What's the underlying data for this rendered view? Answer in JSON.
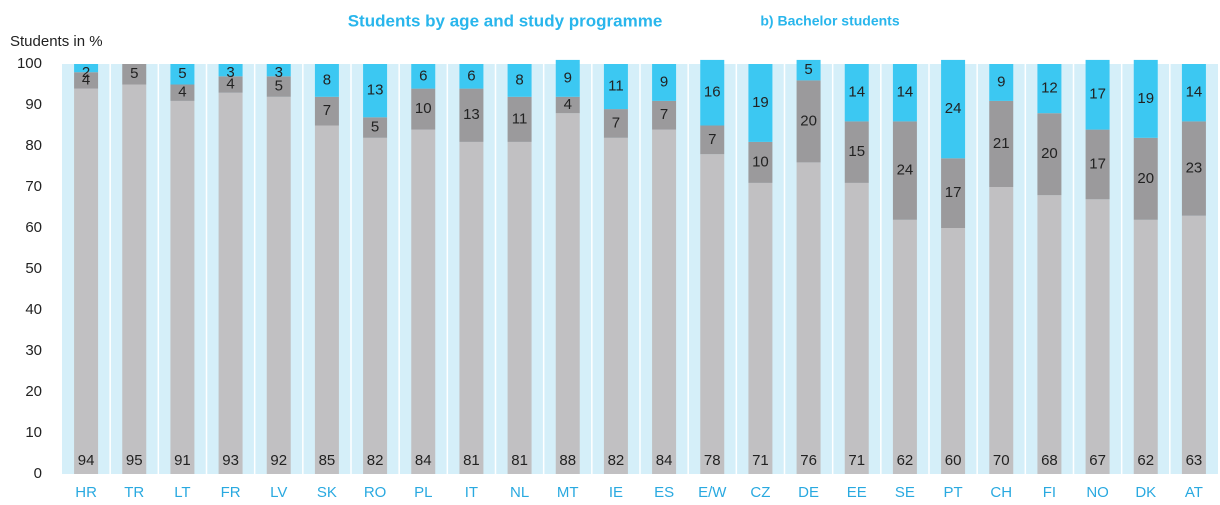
{
  "chart_data": {
    "type": "stacked_bar",
    "title": "Students by age and study programme",
    "subtitle": "b) Bachelor students",
    "y_label": "Students in %",
    "categories": [
      "HR",
      "TR",
      "LT",
      "FR",
      "LV",
      "SK",
      "RO",
      "PL",
      "IT",
      "NL",
      "MT",
      "IE",
      "ES",
      "E/W",
      "CZ",
      "DE",
      "EE",
      "SE",
      "PT",
      "CH",
      "FI",
      "NO",
      "DK",
      "AT"
    ],
    "series": [
      {
        "color": "#c1c0c2",
        "values": [
          94,
          95,
          91,
          93,
          92,
          85,
          82,
          84,
          81,
          81,
          88,
          82,
          84,
          78,
          71,
          76,
          71,
          62,
          60,
          70,
          68,
          67,
          62,
          63
        ]
      },
      {
        "color": "#9b9a9c",
        "values": [
          4,
          5,
          4,
          4,
          5,
          7,
          5,
          10,
          13,
          11,
          4,
          7,
          7,
          7,
          10,
          20,
          15,
          24,
          17,
          21,
          20,
          17,
          20,
          23
        ]
      },
      {
        "color": "#3cc8f2",
        "values": [
          2,
          null,
          5,
          3,
          3,
          8,
          13,
          6,
          6,
          8,
          9,
          11,
          9,
          16,
          19,
          5,
          14,
          14,
          24,
          9,
          12,
          17,
          19,
          14
        ]
      }
    ],
    "ylim": [
      0,
      100
    ],
    "yticks": [
      0,
      10,
      20,
      30,
      40,
      50,
      60,
      70,
      80,
      90,
      100
    ],
    "grid": false
  }
}
